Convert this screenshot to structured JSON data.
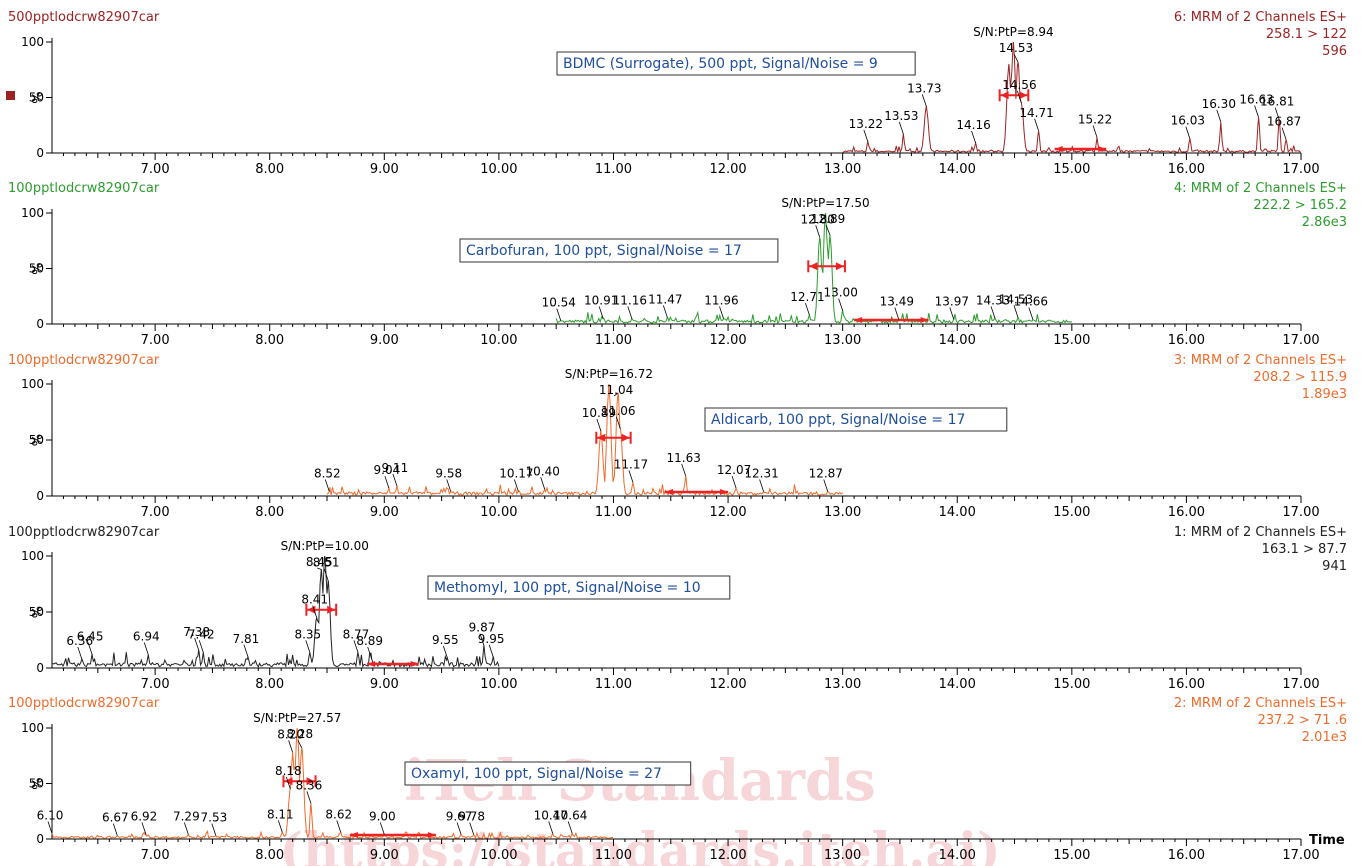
{
  "chart_data": {
    "type": "line",
    "x_axis": {
      "xlim": [
        6.1,
        17.0
      ],
      "ticks": [
        "7.00",
        "8.00",
        "9.00",
        "10.00",
        "11.00",
        "12.00",
        "13.00",
        "14.00",
        "15.00",
        "16.00",
        "17.00"
      ],
      "xlabel": "Time"
    },
    "panels": [
      {
        "sample": "500pptlodcrw82907car",
        "channel": "6: MRM of 2 Channels ES+",
        "transition": "258.1 > 122",
        "intensity": "596",
        "color": "#9b2323",
        "compound_label": "BDMC (Surrogate), 500 ppt, Signal/Noise = 9",
        "sn_label": "S/N:PtP=8.94",
        "y_ticks": [
          "100",
          "50",
          "0"
        ],
        "ylabel": "%",
        "trace_range": [
          13.0,
          17.0
        ],
        "baseline_pct": 2,
        "peaks": [
          {
            "x": 13.22,
            "y": 10
          },
          {
            "x": 13.53,
            "y": 17
          },
          {
            "x": 13.73,
            "y": 42
          },
          {
            "x": 14.16,
            "y": 9
          },
          {
            "x": 14.45,
            "y": 80
          },
          {
            "x": 14.49,
            "y": 100
          },
          {
            "x": 14.53,
            "y": 82
          },
          {
            "x": 14.56,
            "y": 45
          },
          {
            "x": 14.71,
            "y": 20
          },
          {
            "x": 15.22,
            "y": 14
          },
          {
            "x": 16.03,
            "y": 13
          },
          {
            "x": 16.3,
            "y": 28
          },
          {
            "x": 16.63,
            "y": 32
          },
          {
            "x": 16.81,
            "y": 30
          },
          {
            "x": 16.87,
            "y": 12
          }
        ],
        "peak_labels": [
          {
            "x": 13.22,
            "text": "13.22"
          },
          {
            "x": 13.53,
            "text": "13.53"
          },
          {
            "x": 13.73,
            "text": "13.73"
          },
          {
            "x": 14.16,
            "text": "14.16"
          },
          {
            "x": 14.53,
            "text": "14.53"
          },
          {
            "x": 14.56,
            "text": "14.56"
          },
          {
            "x": 14.71,
            "text": "14.71"
          },
          {
            "x": 15.22,
            "text": "15.22"
          },
          {
            "x": 16.03,
            "text": "16.03"
          },
          {
            "x": 16.3,
            "text": "16.30"
          },
          {
            "x": 16.63,
            "text": "16.63"
          },
          {
            "x": 16.81,
            "text": "16.81"
          },
          {
            "x": 16.87,
            "text": "16.87"
          }
        ],
        "integration": [
          14.37,
          14.62
        ],
        "noise_band": [
          14.85,
          15.3
        ]
      },
      {
        "sample": "100pptlodcrw82907car",
        "channel": "4: MRM of 2 Channels ES+",
        "transition": "222.2 > 165.2",
        "intensity": "2.86e3",
        "color": "#2e9b2e",
        "compound_label": "Carbofuran, 100 ppt, Signal/Noise = 17",
        "sn_label": "S/N:PtP=17.50",
        "y_ticks": [
          "100",
          "50",
          "0"
        ],
        "ylabel": "%",
        "trace_range": [
          10.5,
          15.0
        ],
        "baseline_pct": 3,
        "peaks": [
          {
            "x": 10.54,
            "y": 3
          },
          {
            "x": 10.91,
            "y": 5
          },
          {
            "x": 11.16,
            "y": 5
          },
          {
            "x": 11.47,
            "y": 6
          },
          {
            "x": 11.96,
            "y": 5
          },
          {
            "x": 12.71,
            "y": 8
          },
          {
            "x": 12.8,
            "y": 78
          },
          {
            "x": 12.85,
            "y": 100
          },
          {
            "x": 12.89,
            "y": 80
          },
          {
            "x": 13.0,
            "y": 12
          },
          {
            "x": 13.49,
            "y": 4
          },
          {
            "x": 13.97,
            "y": 4
          },
          {
            "x": 14.33,
            "y": 5
          },
          {
            "x": 14.53,
            "y": 6
          },
          {
            "x": 14.66,
            "y": 4
          }
        ],
        "peak_labels": [
          {
            "x": 10.54,
            "text": "10.54"
          },
          {
            "x": 10.91,
            "text": "10.91"
          },
          {
            "x": 11.16,
            "text": "11.16"
          },
          {
            "x": 11.47,
            "text": "11.47"
          },
          {
            "x": 11.96,
            "text": "11.96"
          },
          {
            "x": 12.71,
            "text": "12.71"
          },
          {
            "x": 12.8,
            "text": "12.80"
          },
          {
            "x": 12.89,
            "text": "12.89"
          },
          {
            "x": 13.0,
            "text": "13.00"
          },
          {
            "x": 13.49,
            "text": "13.49"
          },
          {
            "x": 13.97,
            "text": "13.97"
          },
          {
            "x": 14.33,
            "text": "14.33"
          },
          {
            "x": 14.53,
            "text": "14.53"
          },
          {
            "x": 14.66,
            "text": "14.66"
          }
        ],
        "integration": [
          12.7,
          13.02
        ],
        "noise_band": [
          13.1,
          13.75
        ]
      },
      {
        "sample": "100pptlodcrw82907car",
        "channel": "3: MRM of 2 Channels ES+",
        "transition": "208.2 > 115.9",
        "intensity": "1.89e3",
        "color": "#ee6b2b",
        "compound_label": "Aldicarb, 100 ppt, Signal/Noise = 17",
        "sn_label": "S/N:PtP=16.72",
        "y_ticks": [
          "100",
          "50",
          "0"
        ],
        "ylabel": "%",
        "trace_range": [
          8.5,
          13.0
        ],
        "baseline_pct": 3,
        "peaks": [
          {
            "x": 8.52,
            "y": 4
          },
          {
            "x": 9.04,
            "y": 7
          },
          {
            "x": 9.11,
            "y": 9
          },
          {
            "x": 9.58,
            "y": 4
          },
          {
            "x": 10.17,
            "y": 4
          },
          {
            "x": 10.4,
            "y": 6
          },
          {
            "x": 10.89,
            "y": 58
          },
          {
            "x": 10.96,
            "y": 100
          },
          {
            "x": 11.04,
            "y": 92
          },
          {
            "x": 11.06,
            "y": 60
          },
          {
            "x": 11.17,
            "y": 12
          },
          {
            "x": 11.63,
            "y": 18
          },
          {
            "x": 12.07,
            "y": 7
          },
          {
            "x": 12.31,
            "y": 4
          },
          {
            "x": 12.87,
            "y": 4
          }
        ],
        "peak_labels": [
          {
            "x": 8.52,
            "text": "8.52"
          },
          {
            "x": 9.04,
            "text": "9.04"
          },
          {
            "x": 9.11,
            "text": "9.11"
          },
          {
            "x": 9.58,
            "text": "9.58"
          },
          {
            "x": 10.17,
            "text": "10.17"
          },
          {
            "x": 10.4,
            "text": "10.40"
          },
          {
            "x": 10.89,
            "text": "10.89"
          },
          {
            "x": 11.04,
            "text": "11.04"
          },
          {
            "x": 11.06,
            "text": "11.06"
          },
          {
            "x": 11.17,
            "text": "11.17"
          },
          {
            "x": 11.63,
            "text": "11.63"
          },
          {
            "x": 12.07,
            "text": "12.07"
          },
          {
            "x": 12.31,
            "text": "12.31"
          },
          {
            "x": 12.87,
            "text": "12.87"
          }
        ],
        "integration": [
          10.85,
          11.15
        ],
        "noise_band": [
          11.45,
          12.0
        ]
      },
      {
        "sample": "100pptlodcrw82907car",
        "channel": "1: MRM of 2 Channels ES+",
        "transition": "163.1 > 87.7",
        "intensity": "941",
        "color": "#222222",
        "compound_label": "Methomyl, 100 ppt, Signal/Noise = 10",
        "sn_label": "S/N:PtP=10.00",
        "y_ticks": [
          "100",
          "50",
          "0"
        ],
        "ylabel": "%",
        "trace_range": [
          6.1,
          10.0
        ],
        "baseline_pct": 4,
        "peaks": [
          {
            "x": 6.36,
            "y": 8
          },
          {
            "x": 6.45,
            "y": 12
          },
          {
            "x": 6.94,
            "y": 12
          },
          {
            "x": 7.38,
            "y": 16
          },
          {
            "x": 7.42,
            "y": 14
          },
          {
            "x": 7.81,
            "y": 10
          },
          {
            "x": 8.35,
            "y": 14
          },
          {
            "x": 8.41,
            "y": 45
          },
          {
            "x": 8.45,
            "y": 88
          },
          {
            "x": 8.48,
            "y": 100
          },
          {
            "x": 8.51,
            "y": 78
          },
          {
            "x": 8.77,
            "y": 14
          },
          {
            "x": 8.89,
            "y": 8
          },
          {
            "x": 9.55,
            "y": 9
          },
          {
            "x": 9.87,
            "y": 20
          },
          {
            "x": 9.95,
            "y": 10
          }
        ],
        "peak_labels": [
          {
            "x": 6.36,
            "text": "6.36"
          },
          {
            "x": 6.45,
            "text": "6.45"
          },
          {
            "x": 6.94,
            "text": "6.94"
          },
          {
            "x": 7.38,
            "text": "7.38"
          },
          {
            "x": 7.42,
            "text": "7.42"
          },
          {
            "x": 7.81,
            "text": "7.81"
          },
          {
            "x": 8.35,
            "text": "8.35"
          },
          {
            "x": 8.41,
            "text": "8.41"
          },
          {
            "x": 8.45,
            "text": "8.45"
          },
          {
            "x": 8.51,
            "text": "8.51"
          },
          {
            "x": 8.77,
            "text": "8.77"
          },
          {
            "x": 8.89,
            "text": "8.89"
          },
          {
            "x": 9.55,
            "text": "9.55"
          },
          {
            "x": 9.87,
            "text": "9.87"
          },
          {
            "x": 9.95,
            "text": "9.95"
          }
        ],
        "integration": [
          8.32,
          8.58
        ],
        "noise_band": [
          8.85,
          9.3
        ]
      },
      {
        "sample": "100pptlodcrw82907car",
        "channel": "2: MRM of 2 Channels ES+",
        "transition": "237.2 > 71 .6",
        "intensity": "2.01e3",
        "color": "#ee6b2b",
        "compound_label": "Oxamyl, 100 ppt, Signal/Noise = 27",
        "sn_label": "S/N:PtP=27.57",
        "y_ticks": [
          "100",
          "50",
          "0"
        ],
        "ylabel": "%",
        "trace_range": [
          6.1,
          11.0
        ],
        "baseline_pct": 2,
        "peaks": [
          {
            "x": 6.1,
            "y": 5
          },
          {
            "x": 6.67,
            "y": 3
          },
          {
            "x": 6.92,
            "y": 4
          },
          {
            "x": 7.29,
            "y": 4
          },
          {
            "x": 7.53,
            "y": 3
          },
          {
            "x": 8.11,
            "y": 6
          },
          {
            "x": 8.18,
            "y": 45
          },
          {
            "x": 8.2,
            "y": 78
          },
          {
            "x": 8.24,
            "y": 100
          },
          {
            "x": 8.28,
            "y": 82
          },
          {
            "x": 8.36,
            "y": 32
          },
          {
            "x": 8.62,
            "y": 6
          },
          {
            "x": 9.0,
            "y": 4
          },
          {
            "x": 9.67,
            "y": 4
          },
          {
            "x": 9.78,
            "y": 4
          },
          {
            "x": 10.47,
            "y": 5
          },
          {
            "x": 10.64,
            "y": 5
          }
        ],
        "peak_labels": [
          {
            "x": 6.1,
            "text": "6.10"
          },
          {
            "x": 6.67,
            "text": "6.67"
          },
          {
            "x": 6.92,
            "text": "6.92"
          },
          {
            "x": 7.29,
            "text": "7.29"
          },
          {
            "x": 7.53,
            "text": "7.53"
          },
          {
            "x": 8.11,
            "text": "8.11"
          },
          {
            "x": 8.18,
            "text": "8.18"
          },
          {
            "x": 8.2,
            "text": "8.20"
          },
          {
            "x": 8.28,
            "text": "8.28"
          },
          {
            "x": 8.36,
            "text": "8.36"
          },
          {
            "x": 8.62,
            "text": "8.62"
          },
          {
            "x": 9.0,
            "text": "9.00"
          },
          {
            "x": 9.67,
            "text": "9.67"
          },
          {
            "x": 9.78,
            "text": "9.78"
          },
          {
            "x": 10.47,
            "text": "10.47"
          },
          {
            "x": 10.64,
            "text": "10.64"
          }
        ],
        "integration": [
          8.12,
          8.4
        ],
        "noise_band": [
          8.7,
          9.45
        ]
      }
    ]
  },
  "watermark": {
    "line1": "iTeh Standards",
    "line2": "(https://standards.iteh.ai)"
  },
  "colors": {
    "integration_marker": "#ee2222",
    "label_box_text": "#1f4e9b",
    "axis": "#000000"
  }
}
